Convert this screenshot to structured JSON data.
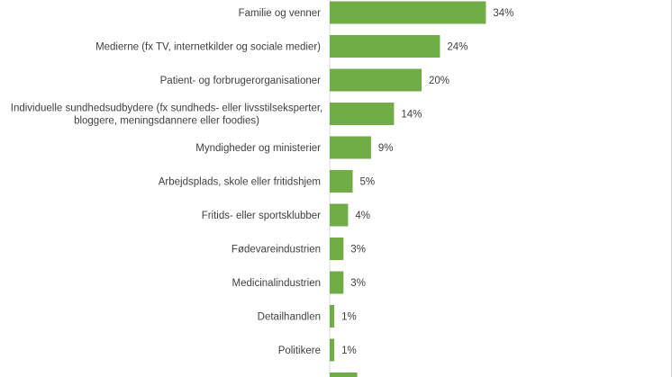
{
  "chart_data": {
    "type": "bar",
    "orientation": "horizontal",
    "categories": [
      [
        "Familie og venner"
      ],
      [
        "Medierne (fx TV, internetkilder og sociale medier)"
      ],
      [
        "Patient- og forbrugerorganisationer"
      ],
      [
        "Individuelle sundhedsudbydere (fx sundheds- eller livsstilseksperter,",
        "bloggere, meningsdannere eller foodies)"
      ],
      [
        "Myndigheder og ministerier"
      ],
      [
        "Arbejdsplads, skole eller fritidshjem"
      ],
      [
        "Fritids- eller sportsklubber"
      ],
      [
        "Fødevareindustrien"
      ],
      [
        "Medicinalindustrien"
      ],
      [
        "Detailhandlen"
      ],
      [
        "Politikere"
      ],
      [
        ""
      ]
    ],
    "values": [
      34,
      24,
      20,
      14,
      9,
      5,
      4,
      3,
      3,
      1,
      1,
      6
    ],
    "value_labels": [
      "34%",
      "24%",
      "20%",
      "14%",
      "9%",
      "5%",
      "4%",
      "3%",
      "3%",
      "1%",
      "1%",
      ""
    ],
    "xlim": [
      0,
      100
    ],
    "bar_color": "#70ad47",
    "grid": false,
    "legend": "none"
  }
}
